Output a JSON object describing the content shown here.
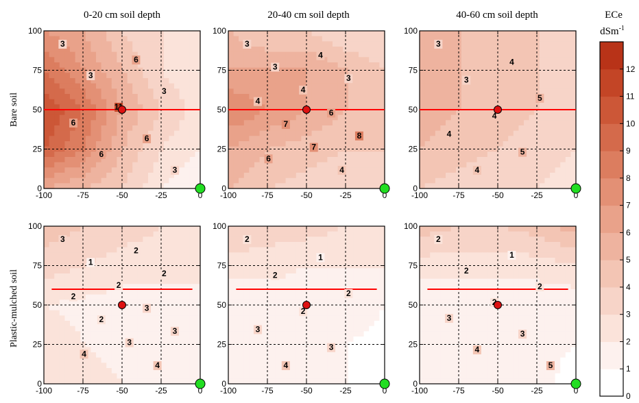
{
  "chart_data": {
    "type": "heatmap",
    "columns": [
      "0-20 cm soil depth",
      "20-40 cm soil depth",
      "40-60 cm soil depth"
    ],
    "rows": [
      "Bare soil",
      "Plastic-mulched soil"
    ],
    "x_ticks": [
      "-100",
      "-75",
      "-50",
      "-25",
      "0"
    ],
    "y_ticks": [
      "0",
      "25",
      "50",
      "75",
      "100"
    ],
    "xlim": [
      -100,
      0
    ],
    "ylim": [
      0,
      100
    ],
    "grid": true,
    "colorbar": {
      "title": "ECe",
      "unit": "dSm",
      "unit_sup": "-1",
      "ticks": [
        "0",
        "1",
        "2",
        "3",
        "4",
        "5",
        "6",
        "7",
        "8",
        "9",
        "10",
        "11",
        "12"
      ],
      "min": 0,
      "max": 13,
      "colors": [
        "#ffffff",
        "#fdf1ee",
        "#fbe3da",
        "#f7d4c8",
        "#f3c5b4",
        "#eeb39f",
        "#e9a28a",
        "#e39075",
        "#dc7d5f",
        "#d46a4b",
        "#cc5737",
        "#c34526",
        "#b83318"
      ]
    },
    "colors": {
      "red_line": "#ff0000",
      "red_point": "#dd1111",
      "green_point": "#22dd22"
    },
    "panels": [
      {
        "name": "bare-0-20",
        "values": [
          [
            7,
            6,
            4,
            3,
            2.5
          ],
          [
            9,
            7,
            5,
            3,
            2
          ],
          [
            11,
            9,
            6,
            4,
            2.5
          ],
          [
            10,
            8,
            5,
            3,
            2
          ],
          [
            6,
            5,
            4,
            2,
            1
          ]
        ],
        "contour_labels": [
          "3",
          "6",
          "3",
          "3",
          "11",
          "6",
          "6",
          "6",
          "3"
        ],
        "red_line_y": 50,
        "red_point": [
          -50,
          50
        ],
        "green_point": [
          0,
          0
        ]
      },
      {
        "name": "bare-20-40",
        "values": [
          [
            5,
            4,
            4,
            3,
            3
          ],
          [
            6,
            6,
            6,
            5,
            4
          ],
          [
            8,
            7,
            6,
            5,
            4
          ],
          [
            6,
            5,
            4.5,
            4,
            4
          ],
          [
            5,
            4,
            3.5,
            3,
            3
          ]
        ],
        "contour_labels": [
          "3",
          "4",
          "3",
          "3",
          "4",
          "4",
          "6",
          "7",
          "8",
          "7",
          "6",
          "4"
        ],
        "red_line_y": 50,
        "red_point": [
          -50,
          50
        ],
        "green_point": [
          0,
          0
        ]
      },
      {
        "name": "bare-40-60",
        "values": [
          [
            5.5,
            5,
            4.5,
            4,
            4
          ],
          [
            5.5,
            5,
            4.5,
            4,
            3.5
          ],
          [
            5.5,
            5,
            4.5,
            4,
            3.5
          ],
          [
            5,
            4.5,
            4,
            3.5,
            3
          ],
          [
            4,
            3.5,
            3,
            3,
            2.5
          ]
        ],
        "contour_labels": [
          "3",
          "4",
          "3",
          "5",
          "4",
          "4",
          "5",
          "4"
        ],
        "red_line_y": 50,
        "red_point": [
          -50,
          50
        ],
        "green_point": [
          0,
          0
        ]
      },
      {
        "name": "mulched-0-20",
        "values": [
          [
            4.5,
            4,
            3.5,
            3,
            3
          ],
          [
            3.5,
            3,
            2.5,
            2.5,
            2.5
          ],
          [
            2,
            1.8,
            1.5,
            1.5,
            1.5
          ],
          [
            2.5,
            2,
            1.5,
            1.5,
            1.3
          ],
          [
            3,
            2.5,
            2,
            1.5,
            1
          ]
        ],
        "contour_labels": [
          "3",
          "2",
          "1",
          "2",
          "2",
          "2",
          "3",
          "2",
          "3",
          "3",
          "4",
          "4"
        ],
        "red_line_y": 60,
        "red_point": [
          -50,
          50
        ],
        "green_point": [
          0,
          0
        ]
      },
      {
        "name": "mulched-20-40",
        "values": [
          [
            4,
            3.5,
            3.5,
            3,
            3
          ],
          [
            2.5,
            2.5,
            2,
            2,
            2
          ],
          [
            1.2,
            1.2,
            1.2,
            1.2,
            1
          ],
          [
            1.3,
            1.3,
            1.2,
            1,
            0.9
          ],
          [
            1.8,
            1.7,
            1.5,
            1,
            0.5
          ]
        ],
        "contour_labels": [
          "2",
          "1",
          "2",
          "2",
          "2",
          "3",
          "3",
          "4"
        ],
        "red_line_y": 60,
        "red_point": [
          -50,
          50
        ],
        "green_point": [
          0,
          0
        ]
      },
      {
        "name": "mulched-40-60",
        "values": [
          [
            4.5,
            4,
            4,
            4.5,
            5.5
          ],
          [
            2.5,
            2.5,
            2.5,
            2.5,
            3
          ],
          [
            1.2,
            1.2,
            1.2,
            1.2,
            1.2
          ],
          [
            1.1,
            1.2,
            1.5,
            1.2,
            1
          ],
          [
            1.1,
            1.3,
            1.8,
            1.4,
            0.6
          ]
        ],
        "contour_labels": [
          "2",
          "1",
          "2",
          "2",
          "2",
          "3",
          "3",
          "4",
          "5"
        ],
        "red_line_y": 60,
        "red_point": [
          -50,
          50
        ],
        "green_point": [
          0,
          0
        ]
      }
    ]
  }
}
